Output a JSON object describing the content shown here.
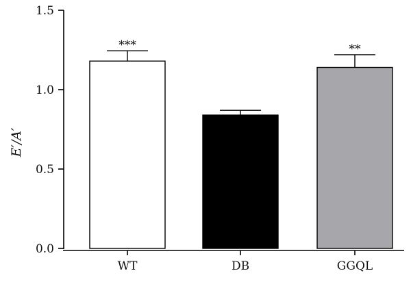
{
  "chart_data": {
    "type": "bar",
    "title": "",
    "xlabel": "",
    "ylabel": "E′/A′",
    "ylim": [
      0,
      1.5
    ],
    "yticks": [
      "0.0",
      "0.5",
      "1.0",
      "1.5"
    ],
    "categories": [
      "WT",
      "DB",
      "GGQL"
    ],
    "values": [
      1.18,
      0.84,
      1.14
    ],
    "errors": [
      0.065,
      0.03,
      0.08
    ],
    "significance": [
      "***",
      "",
      "**"
    ],
    "bar_colors": [
      "#ffffff",
      "#000000",
      "#a7a6ab"
    ],
    "grid": false
  }
}
